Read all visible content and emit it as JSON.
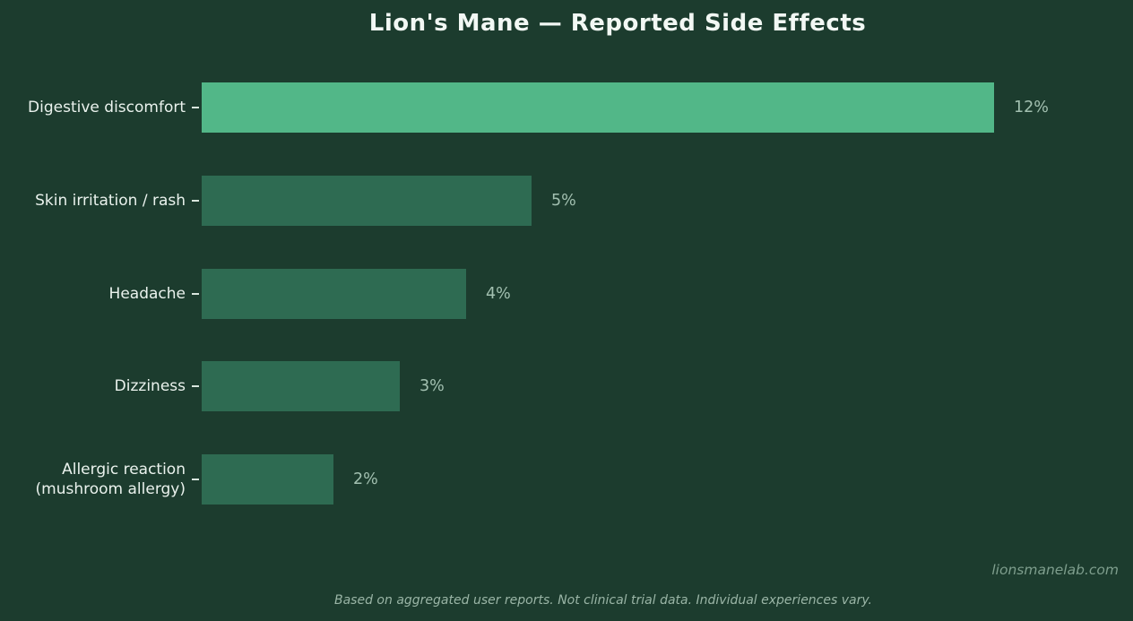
{
  "title": "Lion's Mane — Reported Side Effects",
  "colors": {
    "background": "#1c3c2e",
    "bar_highlight": "#52b788",
    "bar_default": "#2e6b52",
    "title_text": "#f2f8f4",
    "label_text": "#eaf2ed",
    "value_text": "#a2c0b0",
    "tick": "#d9e6de",
    "watermark_text": "#7e9e8d",
    "caption_text": "#9ab5a6"
  },
  "chart_data": {
    "type": "bar",
    "orientation": "horizontal",
    "title": "Lion's Mane — Reported Side Effects",
    "categories": [
      "Digestive discomfort",
      "Skin irritation / rash",
      "Headache",
      "Dizziness",
      "Allergic reaction\n(mushroom allergy)"
    ],
    "values": [
      12,
      5,
      4,
      3,
      2
    ],
    "value_labels": [
      "12%",
      "5%",
      "4%",
      "3%",
      "2%"
    ],
    "xlabel": "",
    "ylabel": "",
    "xlim": [
      0,
      12
    ],
    "highlight_index": 0,
    "grid": false,
    "legend": false
  },
  "footer": {
    "watermark": "lionsmanelab.com",
    "caption": "Based on aggregated user reports. Not clinical trial data. Individual experiences vary."
  }
}
